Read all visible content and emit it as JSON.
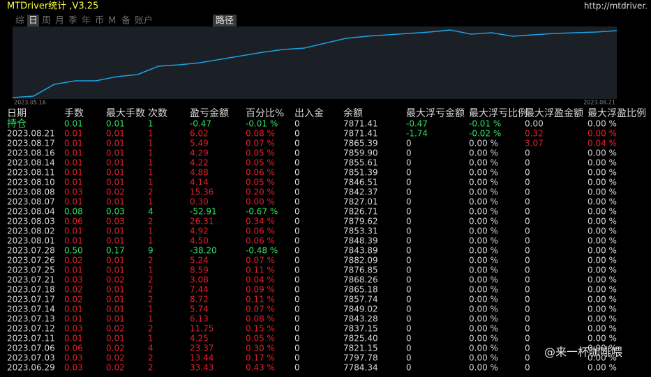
{
  "header": {
    "title": "MTDriver统计 ,V3.25",
    "link": "http://mtdriver."
  },
  "tabs": [
    "综",
    "日",
    "周",
    "月",
    "季",
    "年",
    "币",
    "M",
    "备",
    "账户"
  ],
  "active_tab": 1,
  "path_button": "路径",
  "equity_chart": {
    "type": "line",
    "color": "#1ea0e0",
    "x_start": "2023.05.16",
    "x_end": "2023.08.21",
    "values": [
      7586,
      7592,
      7643,
      7658,
      7658,
      7676,
      7685,
      7721,
      7727,
      7736,
      7751,
      7766,
      7781,
      7793,
      7799,
      7820,
      7841,
      7850,
      7856,
      7862,
      7868,
      7877,
      7859,
      7865,
      7850,
      7856,
      7862,
      7865,
      7868,
      7874
    ]
  },
  "table": {
    "columns": [
      "日期",
      "手数",
      "最大手数",
      "次数",
      "盈亏金额",
      "百分比%",
      "出入金",
      "余额",
      "最大浮亏金额",
      "最大浮亏比例",
      "最大浮盈金额",
      "最大浮盈比例"
    ],
    "rows": [
      [
        "持仓",
        "0.01",
        "0.01",
        "1",
        "-0.47",
        "-0.01 %",
        "0",
        "7871.41",
        "-0.47",
        "-0.01 %",
        "0.00",
        "0.00 %"
      ],
      [
        "2023.08.21",
        "0.01",
        "0.01",
        "1",
        "6.02",
        "0.08 %",
        "0",
        "7871.41",
        "-1.74",
        "-0.02 %",
        "0.32",
        "0.00 %"
      ],
      [
        "2023.08.17",
        "0.01",
        "0.01",
        "1",
        "5.49",
        "0.07 %",
        "0",
        "7865.39",
        "0",
        "0.00 %",
        "3.07",
        "0.04 %"
      ],
      [
        "2023.08.16",
        "0.01",
        "0.01",
        "1",
        "4.29",
        "0.05 %",
        "0",
        "7859.90",
        "0",
        "0.00 %",
        "0",
        "0.00 %"
      ],
      [
        "2023.08.14",
        "0.01",
        "0.01",
        "1",
        "4.22",
        "0.05 %",
        "0",
        "7855.61",
        "0",
        "0.00 %",
        "0",
        "0.00 %"
      ],
      [
        "2023.08.11",
        "0.01",
        "0.01",
        "1",
        "4.88",
        "0.06 %",
        "0",
        "7851.39",
        "0",
        "0.00 %",
        "0",
        "0.00 %"
      ],
      [
        "2023.08.10",
        "0.01",
        "0.01",
        "1",
        "4.14",
        "0.05 %",
        "0",
        "7846.51",
        "0",
        "0.00 %",
        "0",
        "0.00 %"
      ],
      [
        "2023.08.08",
        "0.03",
        "0.02",
        "2",
        "15.36",
        "0.20 %",
        "0",
        "7842.37",
        "0",
        "0.00 %",
        "0",
        "0.00 %"
      ],
      [
        "2023.08.07",
        "0.01",
        "0.01",
        "1",
        "0.30",
        "0.00 %",
        "0",
        "7827.01",
        "0",
        "0.00 %",
        "0",
        "0.00 %"
      ],
      [
        "2023.08.04",
        "0.08",
        "0.03",
        "4",
        "-52.91",
        "-0.67 %",
        "0",
        "7826.71",
        "0",
        "0.00 %",
        "0",
        "0.00 %"
      ],
      [
        "2023.08.03",
        "0.06",
        "0.03",
        "2",
        "26.31",
        "0.34 %",
        "0",
        "7879.62",
        "0",
        "0.00 %",
        "0",
        "0.00 %"
      ],
      [
        "2023.08.02",
        "0.01",
        "0.01",
        "1",
        "4.92",
        "0.06 %",
        "0",
        "7853.31",
        "0",
        "0.00 %",
        "0",
        "0.00 %"
      ],
      [
        "2023.08.01",
        "0.01",
        "0.01",
        "1",
        "4.50",
        "0.06 %",
        "0",
        "7848.39",
        "0",
        "0.00 %",
        "0",
        "0.00 %"
      ],
      [
        "2023.07.28",
        "0.50",
        "0.17",
        "9",
        "-38.20",
        "-0.48 %",
        "0",
        "7843.89",
        "0",
        "0.00 %",
        "0",
        "0.00 %"
      ],
      [
        "2023.07.26",
        "0.02",
        "0.01",
        "2",
        "5.24",
        "0.07 %",
        "0",
        "7882.09",
        "0",
        "0.00 %",
        "0",
        "0.00 %"
      ],
      [
        "2023.07.25",
        "0.01",
        "0.01",
        "1",
        "8.59",
        "0.11 %",
        "0",
        "7876.85",
        "0",
        "0.00 %",
        "0",
        "0.00 %"
      ],
      [
        "2023.07.21",
        "0.03",
        "0.02",
        "2",
        "3.08",
        "0.04 %",
        "0",
        "7868.26",
        "0",
        "0.00 %",
        "0",
        "0.00 %"
      ],
      [
        "2023.07.18",
        "0.02",
        "0.01",
        "2",
        "7.44",
        "0.09 %",
        "0",
        "7865.18",
        "0",
        "0.00 %",
        "0",
        "0.00 %"
      ],
      [
        "2023.07.17",
        "0.02",
        "0.01",
        "2",
        "8.72",
        "0.11 %",
        "0",
        "7857.74",
        "0",
        "0.00 %",
        "0",
        "0.00 %"
      ],
      [
        "2023.07.14",
        "0.01",
        "0.01",
        "1",
        "5.74",
        "0.07 %",
        "0",
        "7849.02",
        "0",
        "0.00 %",
        "0",
        "0.00 %"
      ],
      [
        "2023.07.13",
        "0.01",
        "0.01",
        "1",
        "6.13",
        "0.08 %",
        "0",
        "7843.28",
        "0",
        "0.00 %",
        "0",
        "0.00 %"
      ],
      [
        "2023.07.12",
        "0.03",
        "0.02",
        "2",
        "11.75",
        "0.15 %",
        "0",
        "7837.15",
        "0",
        "0.00 %",
        "0",
        "0.00 %"
      ],
      [
        "2023.07.11",
        "0.01",
        "0.01",
        "1",
        "4.25",
        "0.05 %",
        "0",
        "7825.40",
        "0",
        "0.00 %",
        "0",
        "0.00 %"
      ],
      [
        "2023.07.06",
        "0.06",
        "0.02",
        "4",
        "23.37",
        "0.30 %",
        "0",
        "7821.15",
        "0",
        "0.00 %",
        "0",
        "0.00 %"
      ],
      [
        "2023.07.03",
        "0.03",
        "0.02",
        "2",
        "13.44",
        "0.17 %",
        "0",
        "7797.78",
        "0",
        "0.00 %",
        "0",
        "0.00 %"
      ],
      [
        "2023.06.29",
        "0.03",
        "0.02",
        "2",
        "33.43",
        "0.43 %",
        "0",
        "7784.34",
        "0",
        "0.00 %",
        "0",
        "0.00 %"
      ]
    ]
  },
  "watermark": "@来一杯咖啡喂"
}
